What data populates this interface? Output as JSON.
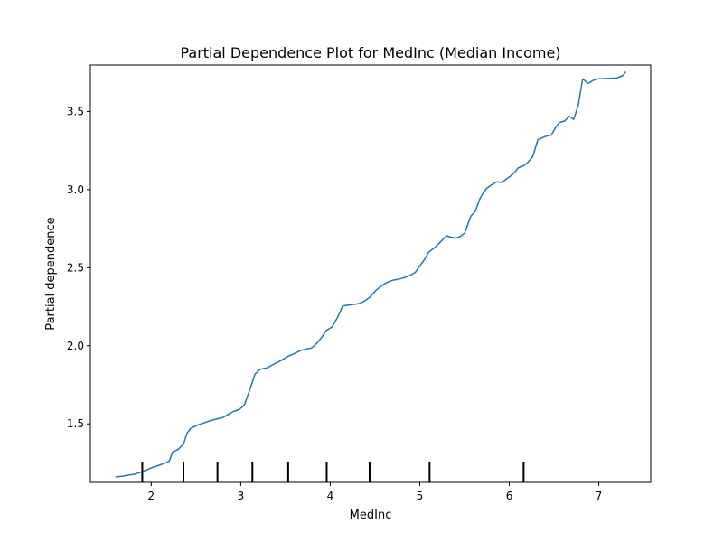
{
  "chart_data": {
    "type": "line",
    "title": "Partial Dependence Plot for MedInc (Median Income)",
    "xlabel": "MedInc",
    "ylabel": "Partial dependence",
    "xlim": [
      1.32,
      7.58
    ],
    "ylim": [
      1.125,
      3.798
    ],
    "xticks": [
      2,
      3,
      4,
      5,
      6,
      7
    ],
    "yticks": [
      1.5,
      2.0,
      2.5,
      3.0,
      3.5
    ],
    "xtick_labels": [
      "2",
      "3",
      "4",
      "5",
      "6",
      "7"
    ],
    "ytick_labels": [
      "1.5",
      "2.0",
      "2.5",
      "3.0",
      "3.5"
    ],
    "grid": false,
    "line_color": "#1f77b4",
    "deciles": [
      1.9,
      2.36,
      2.74,
      3.13,
      3.53,
      3.96,
      4.44,
      5.11,
      6.16
    ],
    "series": [
      {
        "x": [
          1.6,
          1.68,
          1.75,
          1.82,
          1.88,
          1.95,
          2.02,
          2.09,
          2.16,
          2.2,
          2.24,
          2.3,
          2.36,
          2.4,
          2.44,
          2.48,
          2.54,
          2.6,
          2.67,
          2.74,
          2.8,
          2.86,
          2.92,
          2.98,
          3.04,
          3.09,
          3.12,
          3.16,
          3.22,
          3.3,
          3.38,
          3.45,
          3.52,
          3.6,
          3.66,
          3.72,
          3.79,
          3.84,
          3.9,
          3.96,
          4.02,
          4.08,
          4.14,
          4.2,
          4.26,
          4.32,
          4.38,
          4.44,
          4.52,
          4.6,
          4.65,
          4.7,
          4.75,
          4.82,
          4.89,
          4.95,
          5.0,
          5.05,
          5.1,
          5.17,
          5.24,
          5.3,
          5.35,
          5.4,
          5.45,
          5.5,
          5.57,
          5.62,
          5.67,
          5.71,
          5.75,
          5.8,
          5.86,
          5.92,
          5.97,
          6.01,
          6.06,
          6.1,
          6.15,
          6.2,
          6.26,
          6.32,
          6.4,
          6.47,
          6.52,
          6.56,
          6.62,
          6.67,
          6.72,
          6.77,
          6.82,
          6.88,
          6.94,
          7.0,
          7.1,
          7.2,
          7.27,
          7.3
        ],
        "y": [
          1.16,
          1.165,
          1.172,
          1.178,
          1.19,
          1.205,
          1.222,
          1.235,
          1.25,
          1.26,
          1.32,
          1.336,
          1.37,
          1.44,
          1.47,
          1.482,
          1.497,
          1.508,
          1.522,
          1.532,
          1.54,
          1.56,
          1.58,
          1.59,
          1.62,
          1.7,
          1.75,
          1.82,
          1.85,
          1.86,
          1.885,
          1.905,
          1.93,
          1.95,
          1.968,
          1.978,
          1.985,
          2.01,
          2.05,
          2.1,
          2.12,
          2.18,
          2.255,
          2.26,
          2.265,
          2.27,
          2.285,
          2.31,
          2.36,
          2.395,
          2.41,
          2.42,
          2.425,
          2.435,
          2.45,
          2.47,
          2.51,
          2.55,
          2.6,
          2.63,
          2.67,
          2.705,
          2.695,
          2.69,
          2.7,
          2.72,
          2.83,
          2.86,
          2.94,
          2.98,
          3.01,
          3.03,
          3.05,
          3.045,
          3.07,
          3.085,
          3.11,
          3.14,
          3.15,
          3.17,
          3.21,
          3.32,
          3.34,
          3.35,
          3.4,
          3.43,
          3.44,
          3.47,
          3.45,
          3.54,
          3.71,
          3.68,
          3.7,
          3.71,
          3.712,
          3.715,
          3.73,
          3.755
        ]
      }
    ]
  }
}
